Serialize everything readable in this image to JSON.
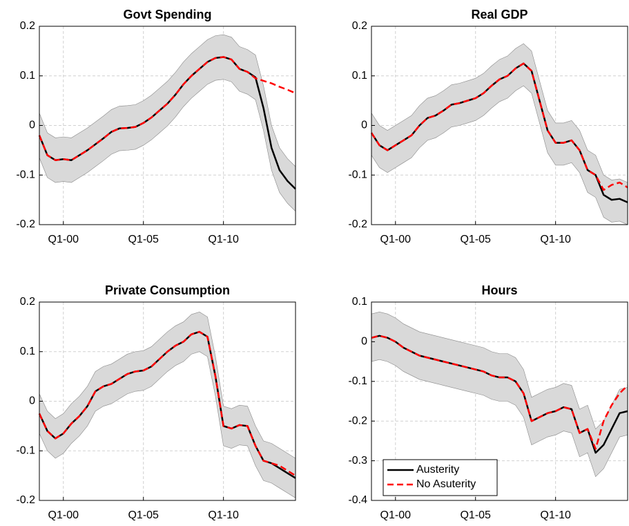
{
  "chart_data": [
    {
      "type": "line",
      "title": "Govt Spending",
      "categories": [
        null,
        null,
        null,
        "Q1-00",
        null,
        null,
        null,
        null,
        null,
        null,
        null,
        null,
        null,
        "Q1-05",
        null,
        null,
        null,
        null,
        null,
        null,
        null,
        null,
        null,
        "Q1-10",
        null,
        null,
        null,
        null,
        null,
        null,
        null,
        null,
        null
      ],
      "ylim": [
        -0.2,
        0.2
      ],
      "yticks": [
        -0.2,
        -0.1,
        0,
        0.1,
        0.2
      ],
      "grid": true,
      "band": {
        "color": "#d9d9d9",
        "upper": [
          0.025,
          -0.015,
          -0.025,
          -0.023,
          -0.025,
          -0.015,
          -0.005,
          0.007,
          0.019,
          0.032,
          0.039,
          0.04,
          0.042,
          0.05,
          0.061,
          0.075,
          0.089,
          0.107,
          0.128,
          0.145,
          0.159,
          0.173,
          0.181,
          0.183,
          0.178,
          0.159,
          0.153,
          0.142,
          0.08,
          0,
          -0.045,
          -0.067,
          -0.083
        ],
        "lower": [
          -0.065,
          -0.105,
          -0.115,
          -0.113,
          -0.115,
          -0.105,
          -0.095,
          -0.083,
          -0.071,
          -0.058,
          -0.051,
          -0.05,
          -0.048,
          -0.04,
          -0.029,
          -0.015,
          -0.001,
          0.017,
          0.038,
          0.055,
          0.069,
          0.083,
          0.091,
          0.093,
          0.088,
          0.069,
          0.063,
          0.052,
          -0.01,
          -0.09,
          -0.135,
          -0.157,
          -0.173
        ]
      },
      "series": [
        {
          "color": "#000000",
          "values": [
            -0.02,
            -0.06,
            -0.07,
            -0.068,
            -0.07,
            -0.06,
            -0.05,
            -0.038,
            -0.026,
            -0.013,
            -0.006,
            -0.005,
            -0.003,
            0.005,
            0.016,
            0.03,
            0.044,
            0.062,
            0.083,
            0.1,
            0.114,
            0.128,
            0.136,
            0.138,
            0.133,
            0.114,
            0.108,
            0.097,
            0.035,
            -0.045,
            -0.09,
            -0.112,
            -0.128
          ]
        },
        {
          "color": "#ff0000",
          "dashed": true,
          "values": [
            -0.02,
            -0.06,
            -0.07,
            -0.068,
            -0.07,
            -0.06,
            -0.05,
            -0.038,
            -0.026,
            -0.013,
            -0.006,
            -0.005,
            -0.003,
            0.005,
            0.016,
            0.03,
            0.044,
            0.062,
            0.083,
            0.1,
            0.114,
            0.128,
            0.136,
            0.138,
            0.133,
            0.114,
            0.108,
            0.095,
            0.09,
            0.085,
            0.078,
            0.072,
            0.065
          ]
        }
      ]
    },
    {
      "type": "line",
      "title": "Real GDP",
      "categories": [
        null,
        null,
        null,
        "Q1-00",
        null,
        null,
        null,
        null,
        null,
        null,
        null,
        null,
        null,
        "Q1-05",
        null,
        null,
        null,
        null,
        null,
        null,
        null,
        null,
        null,
        "Q1-10",
        null,
        null,
        null,
        null,
        null,
        null,
        null,
        null,
        null
      ],
      "ylim": [
        -0.2,
        0.2
      ],
      "yticks": [
        -0.2,
        -0.1,
        0,
        0.1,
        0.2
      ],
      "grid": true,
      "band": {
        "color": "#d9d9d9",
        "upper": [
          0.025,
          0,
          -0.01,
          0,
          0.01,
          0.02,
          0.04,
          0.055,
          0.06,
          0.07,
          0.082,
          0.085,
          0.09,
          0.095,
          0.105,
          0.12,
          0.133,
          0.14,
          0.155,
          0.165,
          0.15,
          0.09,
          0.03,
          0.005,
          0.005,
          0.01,
          -0.01,
          -0.05,
          -0.06,
          -0.1,
          -0.11,
          -0.108,
          -0.115
        ],
        "lower": [
          -0.06,
          -0.085,
          -0.095,
          -0.085,
          -0.075,
          -0.065,
          -0.045,
          -0.03,
          -0.025,
          -0.015,
          -0.003,
          0,
          0.005,
          0.01,
          0.02,
          0.035,
          0.048,
          0.055,
          0.07,
          0.08,
          0.065,
          0.005,
          -0.055,
          -0.08,
          -0.08,
          -0.075,
          -0.095,
          -0.135,
          -0.145,
          -0.185,
          -0.195,
          -0.193,
          -0.2
        ]
      },
      "series": [
        {
          "color": "#000000",
          "values": [
            -0.015,
            -0.04,
            -0.05,
            -0.04,
            -0.03,
            -0.02,
            0,
            0.015,
            0.02,
            0.03,
            0.042,
            0.045,
            0.05,
            0.055,
            0.065,
            0.08,
            0.093,
            0.1,
            0.115,
            0.125,
            0.11,
            0.05,
            -0.01,
            -0.035,
            -0.035,
            -0.03,
            -0.05,
            -0.09,
            -0.1,
            -0.14,
            -0.15,
            -0.148,
            -0.155
          ]
        },
        {
          "color": "#ff0000",
          "dashed": true,
          "values": [
            -0.015,
            -0.04,
            -0.05,
            -0.04,
            -0.03,
            -0.02,
            0,
            0.015,
            0.02,
            0.03,
            0.042,
            0.045,
            0.05,
            0.055,
            0.065,
            0.08,
            0.093,
            0.1,
            0.115,
            0.125,
            0.11,
            0.05,
            -0.01,
            -0.035,
            -0.035,
            -0.03,
            -0.05,
            -0.09,
            -0.1,
            -0.13,
            -0.12,
            -0.115,
            -0.125
          ]
        }
      ]
    },
    {
      "type": "line",
      "title": "Private Consumption",
      "categories": [
        null,
        null,
        null,
        "Q1-00",
        null,
        null,
        null,
        null,
        null,
        null,
        null,
        null,
        null,
        "Q1-05",
        null,
        null,
        null,
        null,
        null,
        null,
        null,
        null,
        null,
        "Q1-10",
        null,
        null,
        null,
        null,
        null,
        null,
        null,
        null,
        null
      ],
      "ylim": [
        -0.2,
        0.2
      ],
      "yticks": [
        -0.2,
        -0.1,
        0,
        0.1,
        0.2
      ],
      "grid": true,
      "band": {
        "color": "#d9d9d9",
        "upper": [
          0.015,
          -0.02,
          -0.035,
          -0.025,
          -0.005,
          0.01,
          0.03,
          0.06,
          0.07,
          0.075,
          0.085,
          0.095,
          0.1,
          0.102,
          0.11,
          0.125,
          0.14,
          0.152,
          0.16,
          0.175,
          0.18,
          0.17,
          0.09,
          -0.01,
          -0.015,
          -0.008,
          -0.01,
          -0.05,
          -0.08,
          -0.085,
          -0.095,
          -0.105,
          -0.115
        ],
        "lower": [
          -0.065,
          -0.1,
          -0.115,
          -0.105,
          -0.085,
          -0.07,
          -0.05,
          -0.02,
          -0.01,
          -0.005,
          0.005,
          0.015,
          0.02,
          0.022,
          0.03,
          0.045,
          0.06,
          0.072,
          0.08,
          0.095,
          0.1,
          0.09,
          0.01,
          -0.09,
          -0.095,
          -0.088,
          -0.09,
          -0.13,
          -0.16,
          -0.165,
          -0.175,
          -0.185,
          -0.195
        ]
      },
      "series": [
        {
          "color": "#000000",
          "values": [
            -0.025,
            -0.06,
            -0.075,
            -0.065,
            -0.045,
            -0.03,
            -0.01,
            0.02,
            0.03,
            0.035,
            0.045,
            0.055,
            0.06,
            0.062,
            0.07,
            0.085,
            0.1,
            0.112,
            0.12,
            0.135,
            0.14,
            0.13,
            0.05,
            -0.05,
            -0.055,
            -0.048,
            -0.05,
            -0.09,
            -0.12,
            -0.125,
            -0.135,
            -0.145,
            -0.155
          ]
        },
        {
          "color": "#ff0000",
          "dashed": true,
          "values": [
            -0.025,
            -0.06,
            -0.075,
            -0.065,
            -0.045,
            -0.03,
            -0.01,
            0.02,
            0.03,
            0.035,
            0.045,
            0.055,
            0.06,
            0.062,
            0.07,
            0.085,
            0.1,
            0.112,
            0.12,
            0.135,
            0.14,
            0.13,
            0.05,
            -0.05,
            -0.055,
            -0.048,
            -0.05,
            -0.09,
            -0.12,
            -0.125,
            -0.13,
            -0.14,
            -0.15
          ]
        }
      ]
    },
    {
      "type": "line",
      "title": "Hours",
      "categories": [
        null,
        null,
        null,
        "Q1-00",
        null,
        null,
        null,
        null,
        null,
        null,
        null,
        null,
        null,
        "Q1-05",
        null,
        null,
        null,
        null,
        null,
        null,
        null,
        null,
        null,
        "Q1-10",
        null,
        null,
        null,
        null,
        null,
        null,
        null,
        null,
        null
      ],
      "ylim": [
        -0.4,
        0.1
      ],
      "yticks": [
        -0.4,
        -0.3,
        -0.2,
        -0.1,
        0,
        0.1
      ],
      "grid": true,
      "legend": "lower left",
      "band": {
        "color": "#d9d9d9",
        "upper": [
          0.07,
          0.075,
          0.07,
          0.06,
          0.045,
          0.035,
          0.025,
          0.02,
          0.015,
          0.01,
          0.005,
          0,
          -0.005,
          -0.01,
          -0.015,
          -0.025,
          -0.03,
          -0.03,
          -0.04,
          -0.07,
          -0.14,
          -0.13,
          -0.12,
          -0.115,
          -0.105,
          -0.11,
          -0.17,
          -0.16,
          -0.22,
          -0.2,
          -0.16,
          -0.12,
          -0.115
        ],
        "lower": [
          -0.05,
          -0.045,
          -0.05,
          -0.06,
          -0.075,
          -0.085,
          -0.095,
          -0.1,
          -0.105,
          -0.11,
          -0.115,
          -0.12,
          -0.125,
          -0.13,
          -0.135,
          -0.145,
          -0.15,
          -0.15,
          -0.16,
          -0.19,
          -0.26,
          -0.25,
          -0.24,
          -0.235,
          -0.225,
          -0.23,
          -0.29,
          -0.28,
          -0.34,
          -0.32,
          -0.28,
          -0.24,
          -0.235
        ]
      },
      "series": [
        {
          "name": "Austerity",
          "color": "#000000",
          "values": [
            0.01,
            0.015,
            0.01,
            0,
            -0.015,
            -0.025,
            -0.035,
            -0.04,
            -0.045,
            -0.05,
            -0.055,
            -0.06,
            -0.065,
            -0.07,
            -0.075,
            -0.085,
            -0.09,
            -0.09,
            -0.1,
            -0.13,
            -0.2,
            -0.19,
            -0.18,
            -0.175,
            -0.165,
            -0.17,
            -0.23,
            -0.22,
            -0.28,
            -0.26,
            -0.22,
            -0.18,
            -0.175
          ]
        },
        {
          "name": "No Asuterity",
          "color": "#ff0000",
          "dashed": true,
          "values": [
            0.01,
            0.015,
            0.01,
            0,
            -0.015,
            -0.025,
            -0.035,
            -0.04,
            -0.045,
            -0.05,
            -0.055,
            -0.06,
            -0.065,
            -0.07,
            -0.075,
            -0.085,
            -0.09,
            -0.09,
            -0.1,
            -0.13,
            -0.2,
            -0.19,
            -0.18,
            -0.175,
            -0.165,
            -0.17,
            -0.23,
            -0.22,
            -0.27,
            -0.2,
            -0.16,
            -0.13,
            -0.11
          ]
        }
      ]
    }
  ]
}
